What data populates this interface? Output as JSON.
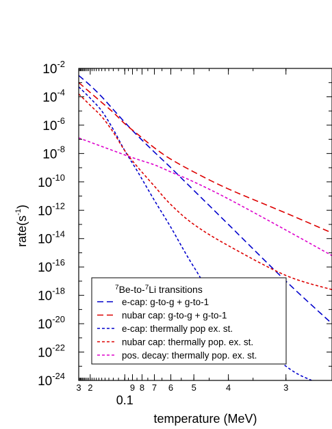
{
  "chart_data": {
    "type": "line",
    "xlabel": "temperature (MeV)",
    "ylabel": "rate(s",
    "ylabel_sup": "-1",
    "ylabel_close": ")",
    "x_axis": {
      "scale": "reciprocal",
      "note": "axis labeled in temperature; equally spaced in 1/T",
      "tick_labels": [
        {
          "T": 0.3,
          "label": "3"
        },
        {
          "T": 0.2,
          "label": "2"
        },
        {
          "T": 0.1,
          "label": "0.1",
          "major": true
        },
        {
          "T": 0.09,
          "label": "9"
        },
        {
          "T": 0.08,
          "label": "8"
        },
        {
          "T": 0.07,
          "label": "7"
        },
        {
          "T": 0.06,
          "label": "6"
        },
        {
          "T": 0.05,
          "label": "5"
        },
        {
          "T": 0.04,
          "label": "4"
        },
        {
          "T": 0.03,
          "label": "3"
        }
      ],
      "range": [
        0.3,
        0.025
      ]
    },
    "y_axis": {
      "scale": "log",
      "range": [
        -24,
        -2
      ],
      "tick_labels": [
        {
          "base": "10",
          "exp": "-2"
        },
        {
          "base": "10",
          "exp": "-4"
        },
        {
          "base": "10",
          "exp": "-6"
        },
        {
          "base": "10",
          "exp": "-8"
        },
        {
          "base": "10",
          "exp": "-10"
        },
        {
          "base": "10",
          "exp": "-12"
        },
        {
          "base": "10",
          "exp": "-14"
        },
        {
          "base": "10",
          "exp": "-16"
        },
        {
          "base": "10",
          "exp": "-18"
        },
        {
          "base": "10",
          "exp": "-20"
        },
        {
          "base": "10",
          "exp": "-22"
        },
        {
          "base": "10",
          "exp": "-24"
        }
      ]
    },
    "legend": {
      "title_parts": [
        "7",
        "Be-to-",
        "7",
        "Li transitions"
      ],
      "placement": "lower-left"
    },
    "series": [
      {
        "name": "e-cap: g-to-g + g-to-1",
        "color": "#0000cc",
        "dash": "long",
        "points": [
          [
            0.3,
            -2.5
          ],
          [
            0.2,
            -3.2
          ],
          [
            0.15,
            -4.0
          ],
          [
            0.12,
            -4.9
          ],
          [
            0.1,
            -5.8
          ],
          [
            0.085,
            -6.7
          ],
          [
            0.07,
            -7.9
          ],
          [
            0.06,
            -9.0
          ],
          [
            0.05,
            -10.6
          ],
          [
            0.04,
            -13.0
          ],
          [
            0.03,
            -17.0
          ],
          [
            0.025,
            -20.0
          ]
        ]
      },
      {
        "name": "nubar cap: g-to-g + g-to-1",
        "color": "#dd0000",
        "dash": "long",
        "points": [
          [
            0.3,
            -3.0
          ],
          [
            0.2,
            -3.7
          ],
          [
            0.15,
            -4.4
          ],
          [
            0.12,
            -5.1
          ],
          [
            0.1,
            -5.9
          ],
          [
            0.085,
            -6.6
          ],
          [
            0.07,
            -7.6
          ],
          [
            0.06,
            -8.4
          ],
          [
            0.05,
            -9.3
          ],
          [
            0.04,
            -10.5
          ],
          [
            0.03,
            -12.2
          ],
          [
            0.025,
            -13.6
          ]
        ]
      },
      {
        "name": "e-cap: thermally pop ex. st.",
        "color": "#0000cc",
        "dash": "short",
        "points": [
          [
            0.3,
            -3.3
          ],
          [
            0.2,
            -4.1
          ],
          [
            0.15,
            -5.0
          ],
          [
            0.12,
            -6.3
          ],
          [
            0.1,
            -7.8
          ],
          [
            0.085,
            -9.2
          ],
          [
            0.07,
            -11.3
          ],
          [
            0.06,
            -13.2
          ],
          [
            0.05,
            -16.0
          ],
          [
            0.04,
            -19.6
          ],
          [
            0.03,
            -23.0
          ],
          [
            0.027,
            -24.0
          ]
        ]
      },
      {
        "name": "nubar cap: thermally pop. ex. st.",
        "color": "#dd0000",
        "dash": "short",
        "points": [
          [
            0.3,
            -3.8
          ],
          [
            0.2,
            -4.6
          ],
          [
            0.15,
            -5.4
          ],
          [
            0.12,
            -6.5
          ],
          [
            0.1,
            -7.8
          ],
          [
            0.085,
            -8.9
          ],
          [
            0.07,
            -10.3
          ],
          [
            0.06,
            -11.6
          ],
          [
            0.05,
            -13.0
          ],
          [
            0.04,
            -14.5
          ],
          [
            0.03,
            -16.6
          ],
          [
            0.025,
            -17.6
          ]
        ]
      },
      {
        "name": "pos. decay: thermally pop. ex. st.",
        "color": "#dd00cc",
        "dash": "short",
        "points": [
          [
            0.3,
            -6.9
          ],
          [
            0.2,
            -7.2
          ],
          [
            0.15,
            -7.5
          ],
          [
            0.12,
            -7.8
          ],
          [
            0.1,
            -8.1
          ],
          [
            0.085,
            -8.4
          ],
          [
            0.07,
            -8.8
          ],
          [
            0.06,
            -9.3
          ],
          [
            0.05,
            -10.0
          ],
          [
            0.04,
            -11.2
          ],
          [
            0.03,
            -13.4
          ],
          [
            0.025,
            -15.2
          ]
        ]
      }
    ]
  }
}
